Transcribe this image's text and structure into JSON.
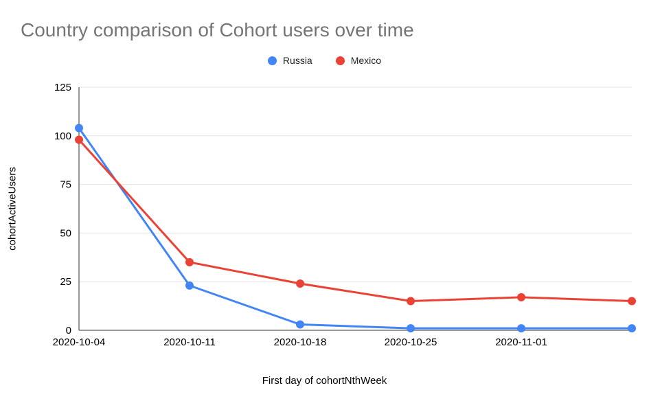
{
  "title": "Country comparison of Cohort users over time",
  "legend": [
    {
      "label": "Russia",
      "color": "#4285F4"
    },
    {
      "label": "Mexico",
      "color": "#EA4335"
    }
  ],
  "colors": {
    "grid": "#e3e3e3",
    "axis": "#333333",
    "title": "#757575",
    "tick_label": "#000000",
    "russia": "#4285F4",
    "mexico": "#EA4335"
  },
  "chart_data": {
    "type": "line",
    "title": "Country comparison of Cohort users over time",
    "xlabel": "First day of cohortNthWeek",
    "ylabel": "cohortActiveUsers",
    "x": [
      "2020-10-04",
      "2020-10-11",
      "2020-10-18",
      "2020-10-25",
      "2020-11-01",
      ""
    ],
    "series": [
      {
        "name": "Russia",
        "color": "#4285F4",
        "values": [
          104,
          23,
          3,
          1,
          1,
          1
        ]
      },
      {
        "name": "Mexico",
        "color": "#EA4335",
        "values": [
          98,
          35,
          24,
          15,
          17,
          15
        ]
      }
    ],
    "ylim": [
      0,
      125
    ],
    "yticks": [
      0,
      25,
      50,
      75,
      100,
      125
    ],
    "grid": true,
    "legend_position": "top"
  }
}
